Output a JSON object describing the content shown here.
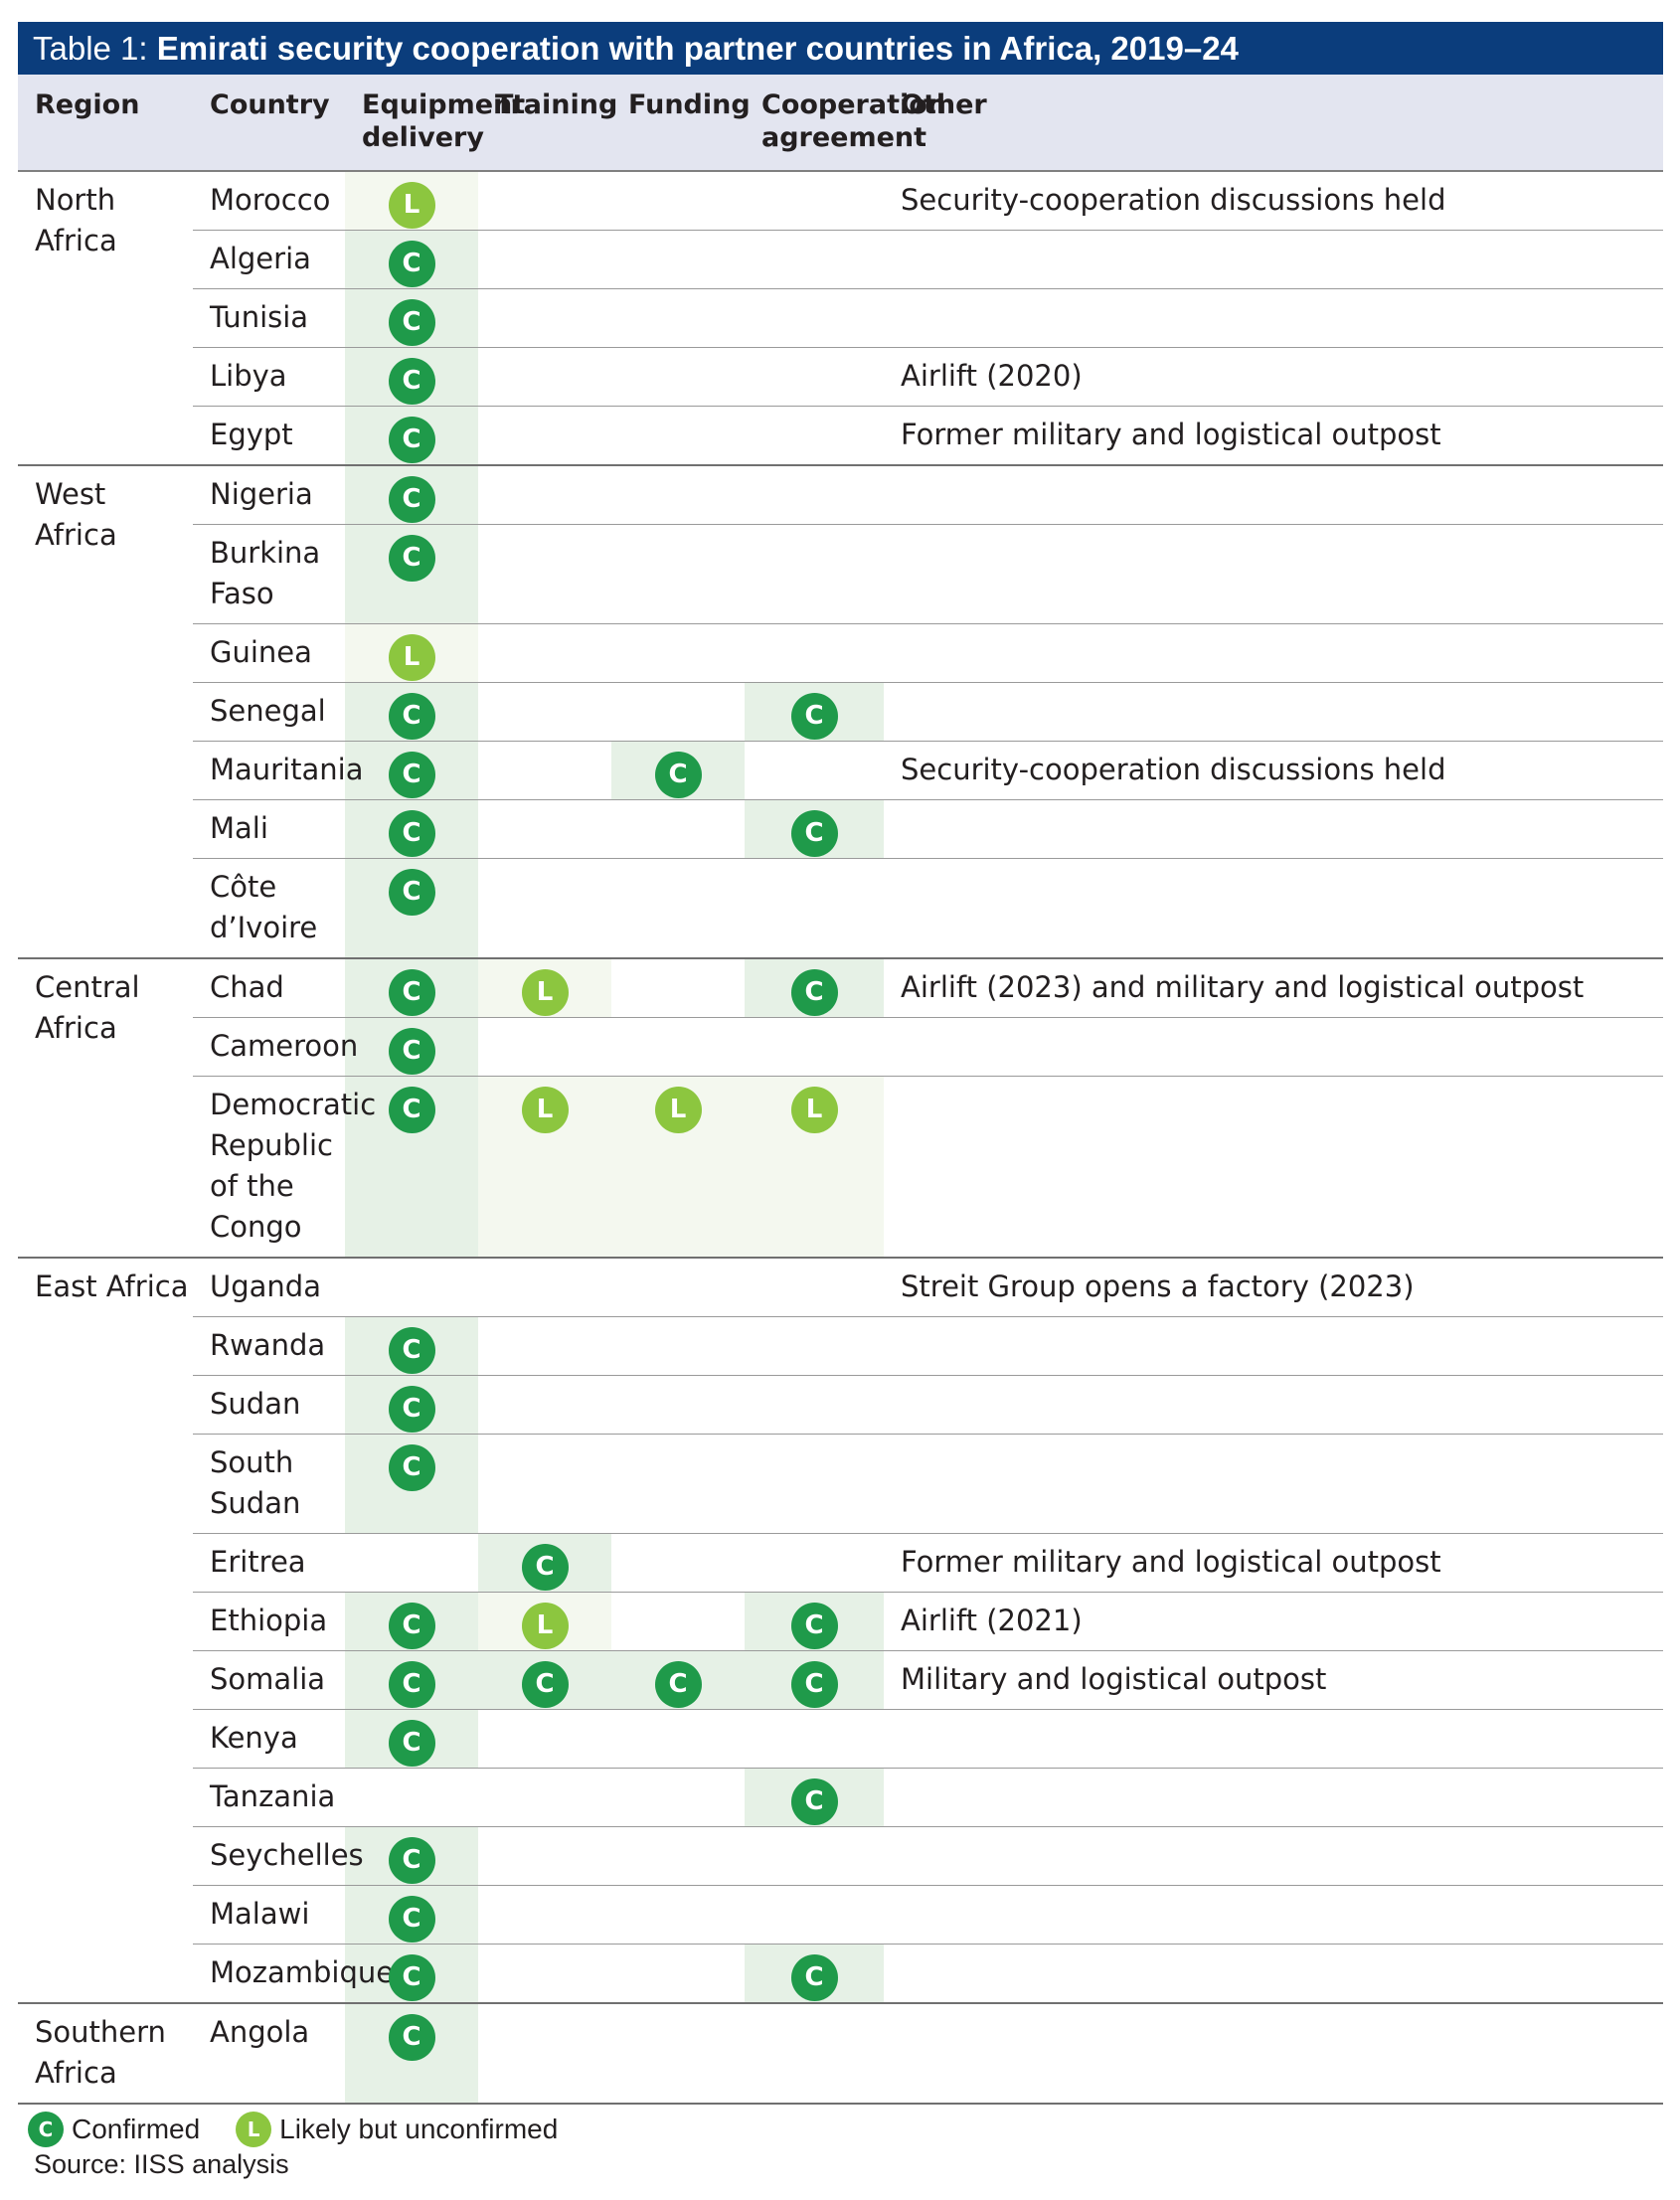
{
  "title": {
    "prefix": "Table 1: ",
    "bold": "Emirati security cooperation with partner countries in Africa, 2019–24"
  },
  "columns": [
    "Region",
    "Country",
    "Equipment delivery",
    "Training",
    "Funding",
    "Cooperation agreement",
    "Other"
  ],
  "rows": [
    {
      "region": "North Africa",
      "country": "Morocco",
      "equipment": "L",
      "training": "",
      "funding": "",
      "agreement": "",
      "other": "Security-cooperation discussions held"
    },
    {
      "region": "",
      "country": "Algeria",
      "equipment": "C",
      "training": "",
      "funding": "",
      "agreement": "",
      "other": ""
    },
    {
      "region": "",
      "country": "Tunisia",
      "equipment": "C",
      "training": "",
      "funding": "",
      "agreement": "",
      "other": ""
    },
    {
      "region": "",
      "country": "Libya",
      "equipment": "C",
      "training": "",
      "funding": "",
      "agreement": "",
      "other": "Airlift (2020)"
    },
    {
      "region": "",
      "country": "Egypt",
      "equipment": "C",
      "training": "",
      "funding": "",
      "agreement": "",
      "other": "Former military and logistical outpost"
    },
    {
      "region": "West Africa",
      "country": "Nigeria",
      "equipment": "C",
      "training": "",
      "funding": "",
      "agreement": "",
      "other": ""
    },
    {
      "region": "",
      "country": "Burkina Faso",
      "equipment": "C",
      "training": "",
      "funding": "",
      "agreement": "",
      "other": ""
    },
    {
      "region": "",
      "country": "Guinea",
      "equipment": "L",
      "training": "",
      "funding": "",
      "agreement": "",
      "other": ""
    },
    {
      "region": "",
      "country": "Senegal",
      "equipment": "C",
      "training": "",
      "funding": "",
      "agreement": "C",
      "other": ""
    },
    {
      "region": "",
      "country": "Mauritania",
      "equipment": "C",
      "training": "",
      "funding": "C",
      "agreement": "",
      "other": "Security-cooperation discussions held"
    },
    {
      "region": "",
      "country": "Mali",
      "equipment": "C",
      "training": "",
      "funding": "",
      "agreement": "C",
      "other": ""
    },
    {
      "region": "",
      "country": "Côte d’Ivoire",
      "equipment": "C",
      "training": "",
      "funding": "",
      "agreement": "",
      "other": ""
    },
    {
      "region": "Central Africa",
      "country": "Chad",
      "equipment": "C",
      "training": "L",
      "funding": "",
      "agreement": "C",
      "other": "Airlift (2023) and military and logistical outpost"
    },
    {
      "region": "",
      "country": "Cameroon",
      "equipment": "C",
      "training": "",
      "funding": "",
      "agreement": "",
      "other": ""
    },
    {
      "region": "",
      "country": "Democratic Republic of the Congo",
      "equipment": "C",
      "training": "L",
      "funding": "L",
      "agreement": "L",
      "other": ""
    },
    {
      "region": "East Africa",
      "country": "Uganda",
      "equipment": "",
      "training": "",
      "funding": "",
      "agreement": "",
      "other": "Streit Group opens a factory (2023)"
    },
    {
      "region": "",
      "country": "Rwanda",
      "equipment": "C",
      "training": "",
      "funding": "",
      "agreement": "",
      "other": ""
    },
    {
      "region": "",
      "country": "Sudan",
      "equipment": "C",
      "training": "",
      "funding": "",
      "agreement": "",
      "other": ""
    },
    {
      "region": "",
      "country": "South Sudan",
      "equipment": "C",
      "training": "",
      "funding": "",
      "agreement": "",
      "other": ""
    },
    {
      "region": "",
      "country": "Eritrea",
      "equipment": "",
      "training": "C",
      "funding": "",
      "agreement": "",
      "other": "Former military and logistical outpost"
    },
    {
      "region": "",
      "country": "Ethiopia",
      "equipment": "C",
      "training": "L",
      "funding": "",
      "agreement": "C",
      "other": "Airlift (2021)"
    },
    {
      "region": "",
      "country": "Somalia",
      "equipment": "C",
      "training": "C",
      "funding": "C",
      "agreement": "C",
      "other": "Military and logistical outpost"
    },
    {
      "region": "",
      "country": "Kenya",
      "equipment": "C",
      "training": "",
      "funding": "",
      "agreement": "",
      "other": ""
    },
    {
      "region": "",
      "country": "Tanzania",
      "equipment": "",
      "training": "",
      "funding": "",
      "agreement": "C",
      "other": ""
    },
    {
      "region": "",
      "country": "Seychelles",
      "equipment": "C",
      "training": "",
      "funding": "",
      "agreement": "",
      "other": ""
    },
    {
      "region": "",
      "country": "Malawi",
      "equipment": "C",
      "training": "",
      "funding": "",
      "agreement": "",
      "other": ""
    },
    {
      "region": "",
      "country": "Mozambique",
      "equipment": "C",
      "training": "",
      "funding": "",
      "agreement": "C",
      "other": ""
    },
    {
      "region": "Southern Africa",
      "country": "Angola",
      "equipment": "C",
      "training": "",
      "funding": "",
      "agreement": "",
      "other": ""
    }
  ],
  "legend": {
    "confirmed_mark": "C",
    "confirmed_label": "Confirmed",
    "likely_mark": "L",
    "likely_label": "Likely but unconfirmed"
  },
  "source": "Source: IISS analysis",
  "colors": {
    "title_bg": "#0b3d7c",
    "header_bg": "#e3e5f0",
    "confirmed": "#1f9a4a",
    "likely": "#8cc63f",
    "confirmed_cell": "#e6f1e6",
    "likely_cell": "#f4f8ef"
  }
}
